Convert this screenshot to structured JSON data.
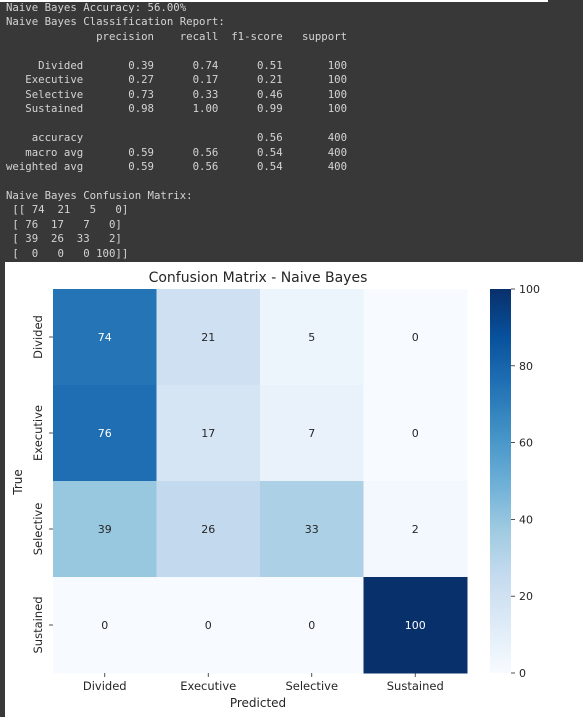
{
  "console": {
    "lines": [
      "Naive Bayes Accuracy: 56.00%",
      "Naive Bayes Classification Report:",
      "              precision    recall  f1-score   support",
      "",
      "     Divided       0.39      0.74      0.51       100",
      "   Executive       0.27      0.17      0.21       100",
      "   Selective       0.73      0.33      0.46       100",
      "   Sustained       0.98      1.00      0.99       100",
      "",
      "    accuracy                           0.56       400",
      "   macro avg       0.59      0.56      0.54       400",
      "weighted avg       0.59      0.56      0.54       400",
      "",
      "Naive Bayes Confusion Matrix:",
      " [[ 74  21   5   0]",
      " [ 76  17   7   0]",
      " [ 39  26  33   2]",
      " [  0   0   0 100]]"
    ]
  },
  "chart_data": {
    "type": "heatmap",
    "title": "Confusion Matrix - Naive Bayes",
    "xlabel": "Predicted",
    "ylabel": "True",
    "x_categories": [
      "Divided",
      "Executive",
      "Selective",
      "Sustained"
    ],
    "y_categories": [
      "Divided",
      "Executive",
      "Selective",
      "Sustained"
    ],
    "values": [
      [
        74,
        21,
        5,
        0
      ],
      [
        76,
        17,
        7,
        0
      ],
      [
        39,
        26,
        33,
        2
      ],
      [
        0,
        0,
        0,
        100
      ]
    ],
    "colorbar": {
      "min": 0,
      "max": 100,
      "ticks": [
        0,
        20,
        40,
        60,
        80,
        100
      ]
    },
    "colormap": "Blues"
  }
}
